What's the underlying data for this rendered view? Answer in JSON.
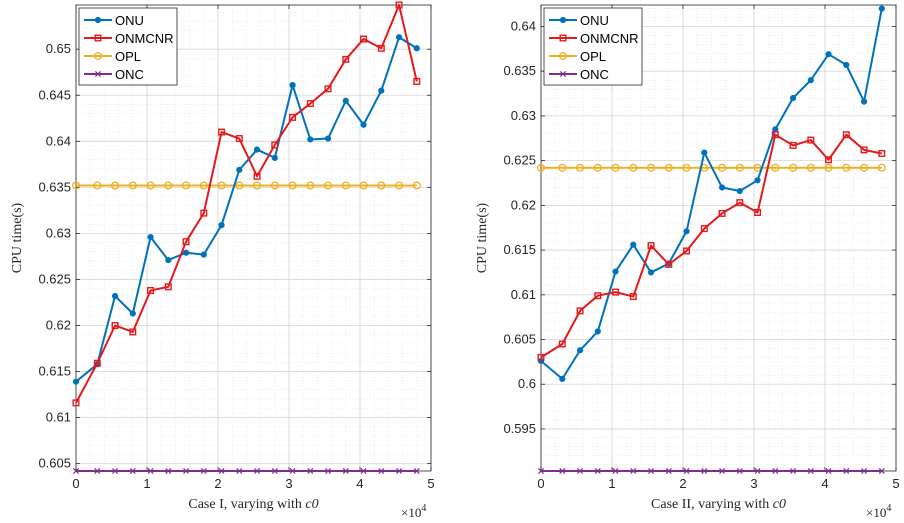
{
  "colors": {
    "ONU": "#0072BD",
    "ONMCNR": "#E41A1C",
    "OPL": "#EDB120",
    "ONC": "#7E2F8E"
  },
  "chart_data": [
    {
      "type": "line",
      "xlabel_prefix": "Case I, varying with ",
      "xlabel_var": "c0",
      "ylabel": "CPU time(s)",
      "x_multiplier": "×10",
      "x_multiplier_exp": "4",
      "xlim": [
        0,
        5
      ],
      "ylim": [
        0.6042,
        0.6548
      ],
      "xticks": [
        0,
        1,
        2,
        3,
        4,
        5
      ],
      "xtick_labels": [
        "0",
        "1",
        "2",
        "3",
        "4",
        "5"
      ],
      "yticks": [
        0.605,
        0.61,
        0.615,
        0.62,
        0.625,
        0.63,
        0.635,
        0.64,
        0.645,
        0.65
      ],
      "ytick_labels": [
        "0.605",
        "0.61",
        "0.615",
        "0.62",
        "0.625",
        "0.63",
        "0.635",
        "0.64",
        "0.645",
        "0.65"
      ],
      "grid": true,
      "legend_position": "top-left",
      "x": [
        0,
        0.3,
        0.55,
        0.8,
        1.05,
        1.3,
        1.55,
        1.8,
        2.05,
        2.3,
        2.55,
        2.8,
        3.05,
        3.3,
        3.55,
        3.8,
        4.05,
        4.3,
        4.55,
        4.8
      ],
      "series": [
        {
          "name": "ONU",
          "marker": "dot",
          "values": [
            0.6139,
            0.6158,
            0.6232,
            0.6213,
            0.6296,
            0.6271,
            0.6279,
            0.6277,
            0.6309,
            0.6369,
            0.6391,
            0.6382,
            0.6461,
            0.6402,
            0.6403,
            0.6444,
            0.6418,
            0.6455,
            0.6513,
            0.6501
          ]
        },
        {
          "name": "ONMCNR",
          "marker": "square",
          "values": [
            0.6116,
            0.6159,
            0.62,
            0.6193,
            0.6238,
            0.6242,
            0.6291,
            0.6322,
            0.641,
            0.6403,
            0.6362,
            0.6396,
            0.6426,
            0.6441,
            0.6457,
            0.6489,
            0.6511,
            0.6501,
            0.6548,
            0.6465
          ]
        },
        {
          "name": "OPL",
          "marker": "circle",
          "values": [
            0.6352,
            0.6352,
            0.6352,
            0.6352,
            0.6352,
            0.6352,
            0.6352,
            0.6352,
            0.6352,
            0.6352,
            0.6352,
            0.6352,
            0.6352,
            0.6352,
            0.6352,
            0.6352,
            0.6352,
            0.6352,
            0.6352,
            0.6352
          ]
        },
        {
          "name": "ONC",
          "marker": "x",
          "values": [
            0.6042,
            0.6042,
            0.6042,
            0.6042,
            0.6042,
            0.6042,
            0.6042,
            0.6042,
            0.6042,
            0.6042,
            0.6042,
            0.6042,
            0.6042,
            0.6042,
            0.6042,
            0.6042,
            0.6042,
            0.6042,
            0.6042,
            0.6042
          ]
        }
      ]
    },
    {
      "type": "line",
      "xlabel_prefix": "Case II, varying with ",
      "xlabel_var": "c0",
      "ylabel": "CPU time(s)",
      "x_multiplier": "×10",
      "x_multiplier_exp": "4",
      "xlim": [
        0,
        5
      ],
      "ylim": [
        0.5903,
        0.6424
      ],
      "xticks": [
        0,
        1,
        2,
        3,
        4,
        5
      ],
      "xtick_labels": [
        "0",
        "1",
        "2",
        "3",
        "4",
        "5"
      ],
      "yticks": [
        0.595,
        0.6,
        0.605,
        0.61,
        0.615,
        0.62,
        0.625,
        0.63,
        0.635,
        0.64
      ],
      "ytick_labels": [
        "0.595",
        "0.6",
        "0.605",
        "0.61",
        "0.615",
        "0.62",
        "0.625",
        "0.63",
        "0.635",
        "0.64"
      ],
      "grid": true,
      "legend_position": "top-left",
      "x": [
        0,
        0.3,
        0.55,
        0.8,
        1.05,
        1.3,
        1.55,
        1.8,
        2.05,
        2.3,
        2.55,
        2.8,
        3.05,
        3.3,
        3.55,
        3.8,
        4.05,
        4.3,
        4.55,
        4.8
      ],
      "series": [
        {
          "name": "ONU",
          "marker": "dot",
          "values": [
            0.6026,
            0.6006,
            0.6038,
            0.6059,
            0.6126,
            0.6156,
            0.6125,
            0.6135,
            0.6171,
            0.6259,
            0.622,
            0.6216,
            0.6228,
            0.6285,
            0.632,
            0.634,
            0.6369,
            0.6357,
            0.6316,
            0.642
          ]
        },
        {
          "name": "ONMCNR",
          "marker": "square",
          "values": [
            0.603,
            0.6045,
            0.6082,
            0.6099,
            0.6103,
            0.6098,
            0.6155,
            0.6134,
            0.6149,
            0.6174,
            0.6191,
            0.6203,
            0.6192,
            0.6279,
            0.6267,
            0.6273,
            0.6251,
            0.6279,
            0.6262,
            0.6258
          ]
        },
        {
          "name": "OPL",
          "marker": "circle",
          "values": [
            0.6242,
            0.6242,
            0.6242,
            0.6242,
            0.6242,
            0.6242,
            0.6242,
            0.6242,
            0.6242,
            0.6242,
            0.6242,
            0.6242,
            0.6242,
            0.6242,
            0.6242,
            0.6242,
            0.6242,
            0.6242,
            0.6242,
            0.6242
          ]
        },
        {
          "name": "ONC",
          "marker": "x",
          "values": [
            0.5903,
            0.5903,
            0.5903,
            0.5903,
            0.5903,
            0.5903,
            0.5903,
            0.5903,
            0.5903,
            0.5903,
            0.5903,
            0.5903,
            0.5903,
            0.5903,
            0.5903,
            0.5903,
            0.5903,
            0.5903,
            0.5903,
            0.5903
          ]
        }
      ]
    }
  ]
}
